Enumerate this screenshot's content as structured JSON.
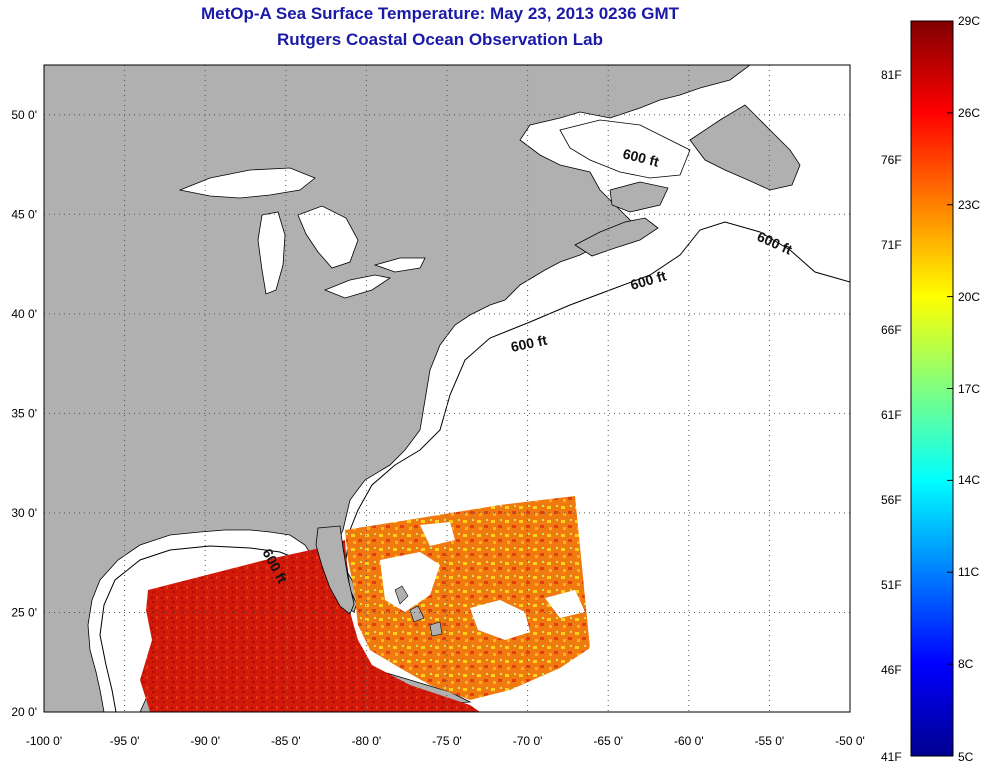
{
  "header": {
    "title": "MetOp-A Sea Surface Temperature:  May 23, 2013 0236 GMT",
    "subtitle": "Rutgers Coastal Ocean Observation Lab"
  },
  "map": {
    "lon_range": [
      -100,
      -50
    ],
    "lat_range": [
      20,
      52.5
    ],
    "lon_ticks": [
      "-100 0'",
      "-95 0'",
      "-90 0'",
      "-85 0'",
      "-80 0'",
      "-75 0'",
      "-70 0'",
      "-65 0'",
      "-60 0'",
      "-55 0'",
      "-50 0'"
    ],
    "lat_ticks": [
      "20 0'",
      "25 0'",
      "30 0'",
      "35 0'",
      "40 0'",
      "45 0'",
      "50 0'"
    ],
    "contour_labels": [
      "600 ft",
      "600 ft",
      "600 ft",
      "600 ft",
      "600 ft"
    ],
    "colors": {
      "land": "#b0b0b0",
      "ocean": "#ffffff",
      "grid": "#555555"
    }
  },
  "colorbar": {
    "celsius": [
      "29C",
      "26C",
      "23C",
      "20C",
      "17C",
      "14C",
      "11C",
      "8C",
      "5C"
    ],
    "fahrenheit": [
      "81F",
      "76F",
      "71F",
      "66F",
      "61F",
      "56F",
      "51F",
      "46F",
      "41F"
    ],
    "colors": [
      "#800000",
      "#ff0000",
      "#ff8000",
      "#ffff00",
      "#80ff80",
      "#00ffff",
      "#0080ff",
      "#0000ff",
      "#00008f"
    ]
  }
}
